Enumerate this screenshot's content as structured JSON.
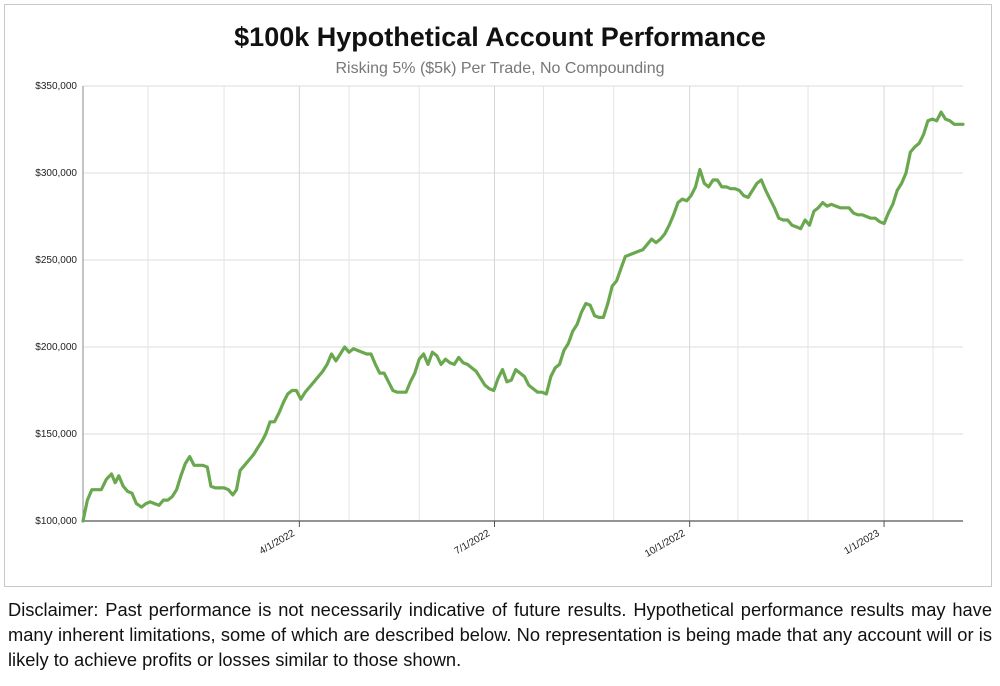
{
  "chart_data": {
    "type": "line",
    "title": "$100k Hypothetical Account Performance",
    "subtitle": "Risking 5% ($5k) Per Trade, No Compounding",
    "xlabel": "",
    "ylabel": "",
    "ylim": [
      100000,
      350000
    ],
    "yticks": [
      100000,
      150000,
      200000,
      250000,
      300000,
      350000
    ],
    "ytick_labels": [
      "$100,000",
      "$150,000",
      "$200,000",
      "$250,000",
      "$300,000",
      "$350,000"
    ],
    "xtick_labels": [
      "4/1/2022",
      "7/1/2022",
      "10/1/2022",
      "1/1/2023"
    ],
    "grid": true,
    "line_color": "#6aa84f",
    "series": [
      {
        "values": [
          [
            0.0,
            100000
          ],
          [
            0.6,
            112000
          ],
          [
            1.2,
            118000
          ],
          [
            1.8,
            118000
          ],
          [
            2.5,
            118000
          ],
          [
            3.2,
            124000
          ],
          [
            3.9,
            127000
          ],
          [
            4.4,
            122000
          ],
          [
            4.9,
            126000
          ],
          [
            5.5,
            120000
          ],
          [
            6.1,
            117000
          ],
          [
            6.7,
            116000
          ],
          [
            7.3,
            110000
          ],
          [
            8.0,
            108000
          ],
          [
            8.6,
            110000
          ],
          [
            9.2,
            111000
          ],
          [
            9.8,
            110000
          ],
          [
            10.4,
            109000
          ],
          [
            11.0,
            112000
          ],
          [
            11.6,
            112000
          ],
          [
            12.2,
            114000
          ],
          [
            12.8,
            118000
          ],
          [
            13.4,
            126000
          ],
          [
            14.0,
            133000
          ],
          [
            14.6,
            137000
          ],
          [
            15.2,
            132000
          ],
          [
            15.8,
            132000
          ],
          [
            16.4,
            132000
          ],
          [
            17.0,
            131000
          ],
          [
            17.5,
            120000
          ],
          [
            18.1,
            119000
          ],
          [
            18.7,
            119000
          ],
          [
            19.3,
            119000
          ],
          [
            19.9,
            118000
          ],
          [
            20.5,
            115000
          ],
          [
            21.0,
            118000
          ],
          [
            21.5,
            129000
          ],
          [
            22.1,
            132000
          ],
          [
            22.7,
            135000
          ],
          [
            23.3,
            138000
          ],
          [
            23.9,
            142000
          ],
          [
            24.5,
            146000
          ],
          [
            25.0,
            150000
          ],
          [
            25.6,
            157000
          ],
          [
            26.2,
            157000
          ],
          [
            26.8,
            162000
          ],
          [
            27.4,
            168000
          ],
          [
            28.0,
            173000
          ],
          [
            28.6,
            175000
          ],
          [
            29.2,
            175000
          ],
          [
            29.8,
            170000
          ],
          [
            30.4,
            174000
          ],
          [
            31.0,
            177000
          ],
          [
            31.6,
            180000
          ],
          [
            32.2,
            183000
          ],
          [
            32.8,
            186000
          ],
          [
            33.4,
            190000
          ],
          [
            34.0,
            196000
          ],
          [
            34.6,
            192000
          ],
          [
            35.2,
            196000
          ],
          [
            35.8,
            200000
          ],
          [
            36.4,
            197000
          ],
          [
            37.0,
            199000
          ],
          [
            37.6,
            198000
          ],
          [
            38.2,
            197000
          ],
          [
            38.8,
            196000
          ],
          [
            39.4,
            196000
          ],
          [
            40.0,
            190000
          ],
          [
            40.6,
            185000
          ],
          [
            41.2,
            185000
          ],
          [
            41.8,
            180000
          ],
          [
            42.4,
            175000
          ],
          [
            43.0,
            174000
          ],
          [
            43.6,
            174000
          ],
          [
            44.2,
            174000
          ],
          [
            44.8,
            180000
          ],
          [
            45.4,
            185000
          ],
          [
            46.0,
            193000
          ],
          [
            46.6,
            196000
          ],
          [
            47.2,
            190000
          ],
          [
            47.8,
            197000
          ],
          [
            48.4,
            195000
          ],
          [
            49.0,
            190000
          ],
          [
            49.6,
            193000
          ],
          [
            50.2,
            191000
          ],
          [
            50.8,
            190000
          ],
          [
            51.4,
            194000
          ],
          [
            52.0,
            191000
          ],
          [
            52.6,
            190000
          ],
          [
            53.2,
            188000
          ],
          [
            53.8,
            186000
          ],
          [
            54.4,
            182000
          ],
          [
            55.0,
            178000
          ],
          [
            55.6,
            176000
          ],
          [
            56.2,
            175000
          ],
          [
            56.8,
            182000
          ],
          [
            57.4,
            187000
          ],
          [
            58.0,
            180000
          ],
          [
            58.6,
            181000
          ],
          [
            59.2,
            187000
          ],
          [
            59.8,
            185000
          ],
          [
            60.4,
            183000
          ],
          [
            61.0,
            178000
          ],
          [
            61.6,
            176000
          ],
          [
            62.2,
            174000
          ],
          [
            62.8,
            174000
          ],
          [
            63.4,
            173000
          ],
          [
            64.0,
            183000
          ],
          [
            64.6,
            188000
          ],
          [
            65.2,
            190000
          ],
          [
            65.8,
            198000
          ],
          [
            66.4,
            202000
          ],
          [
            67.0,
            209000
          ],
          [
            67.6,
            213000
          ],
          [
            68.2,
            220000
          ],
          [
            68.8,
            225000
          ],
          [
            69.4,
            224000
          ],
          [
            70.0,
            218000
          ],
          [
            70.6,
            217000
          ],
          [
            71.2,
            217000
          ],
          [
            71.8,
            225000
          ],
          [
            72.4,
            235000
          ],
          [
            73.0,
            238000
          ],
          [
            73.6,
            245000
          ],
          [
            74.2,
            252000
          ],
          [
            74.8,
            253000
          ],
          [
            75.4,
            254000
          ],
          [
            76.0,
            255000
          ],
          [
            76.6,
            256000
          ],
          [
            77.2,
            259000
          ],
          [
            77.8,
            262000
          ],
          [
            78.4,
            260000
          ],
          [
            79.0,
            262000
          ],
          [
            79.6,
            265000
          ],
          [
            80.2,
            270000
          ],
          [
            80.8,
            276000
          ],
          [
            81.4,
            283000
          ],
          [
            82.0,
            285000
          ],
          [
            82.6,
            284000
          ],
          [
            83.2,
            287000
          ],
          [
            83.8,
            292000
          ],
          [
            84.4,
            302000
          ],
          [
            85.0,
            294000
          ],
          [
            85.6,
            292000
          ],
          [
            86.2,
            296000
          ],
          [
            86.8,
            296000
          ],
          [
            87.4,
            292000
          ],
          [
            88.0,
            292000
          ],
          [
            88.6,
            291000
          ],
          [
            89.2,
            291000
          ],
          [
            89.8,
            290000
          ],
          [
            90.4,
            287000
          ],
          [
            91.0,
            286000
          ],
          [
            91.6,
            290000
          ],
          [
            92.2,
            294000
          ],
          [
            92.8,
            296000
          ],
          [
            93.4,
            290000
          ],
          [
            94.0,
            285000
          ],
          [
            94.6,
            280000
          ],
          [
            95.2,
            274000
          ],
          [
            95.8,
            273000
          ],
          [
            96.4,
            273000
          ],
          [
            97.0,
            270000
          ],
          [
            97.6,
            269000
          ],
          [
            98.2,
            268000
          ],
          [
            98.8,
            273000
          ],
          [
            99.4,
            270000
          ],
          [
            100.0,
            278000
          ],
          [
            100.6,
            280000
          ],
          [
            101.2,
            283000
          ],
          [
            101.8,
            281000
          ],
          [
            102.4,
            282000
          ],
          [
            103.0,
            281000
          ],
          [
            103.6,
            280000
          ],
          [
            104.2,
            280000
          ],
          [
            104.8,
            280000
          ],
          [
            105.4,
            277000
          ],
          [
            106.0,
            276000
          ],
          [
            106.6,
            276000
          ],
          [
            107.2,
            275000
          ],
          [
            107.8,
            274000
          ],
          [
            108.4,
            274000
          ],
          [
            109.0,
            272000
          ],
          [
            109.6,
            271000
          ],
          [
            110.2,
            277000
          ],
          [
            110.8,
            282000
          ],
          [
            111.4,
            290000
          ],
          [
            112.0,
            294000
          ],
          [
            112.6,
            300000
          ],
          [
            113.2,
            312000
          ],
          [
            113.8,
            315000
          ],
          [
            114.4,
            317000
          ],
          [
            115.0,
            322000
          ],
          [
            115.6,
            330000
          ],
          [
            116.2,
            331000
          ],
          [
            116.8,
            330000
          ],
          [
            117.4,
            335000
          ],
          [
            118.0,
            331000
          ],
          [
            118.6,
            330000
          ],
          [
            119.2,
            328000
          ],
          [
            119.8,
            328000
          ],
          [
            120.4,
            328000
          ]
        ]
      }
    ]
  },
  "disclaimer": "Disclaimer: Past performance is not necessarily indicative of future results. Hypothetical performance results may have many inherent limitations, some of which are described below. No representation is being made that any account will or is likely to achieve profits or losses similar to those shown."
}
